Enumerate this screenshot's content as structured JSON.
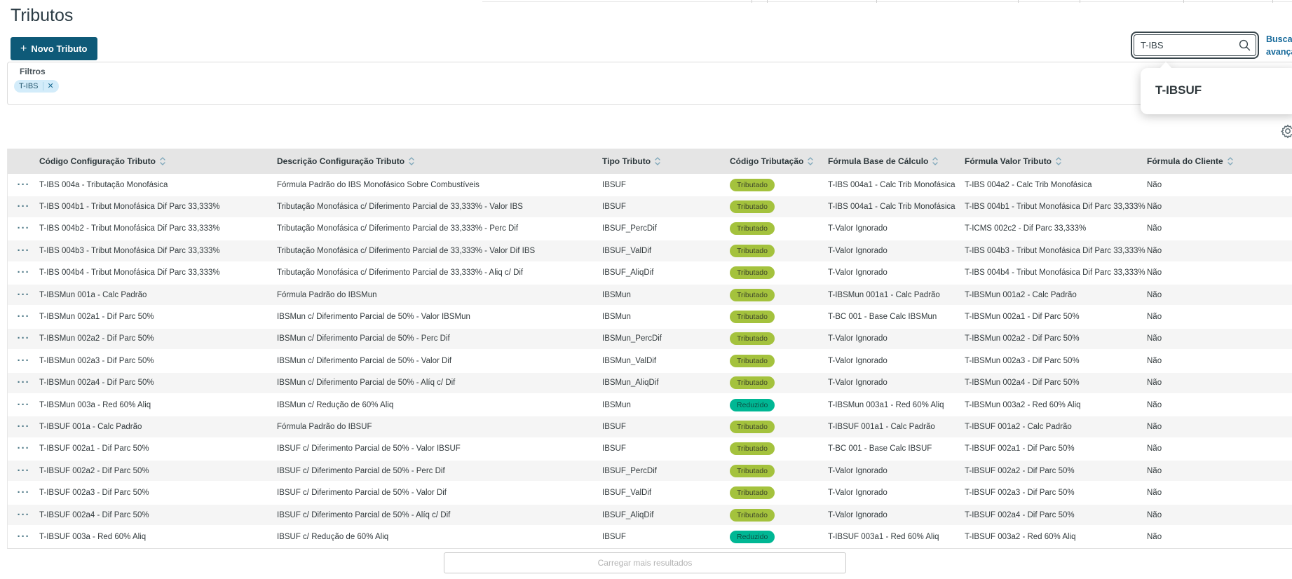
{
  "page": {
    "title": "Tributos"
  },
  "toolbar": {
    "new_button": {
      "icon": "+",
      "label": "Novo Tributo"
    },
    "search": {
      "value": "T-IBS",
      "placeholder": ""
    },
    "advanced_search_link": "Busca avançada"
  },
  "suggestion": {
    "label": "T-IBSUF"
  },
  "filters": {
    "title": "Filtros",
    "chips": [
      {
        "label": "T-IBS"
      }
    ]
  },
  "table": {
    "columns": [
      {
        "label": "",
        "sortable": false
      },
      {
        "label": "Código Configuração Tributo",
        "sortable": true
      },
      {
        "label": "Descrição Configuração Tributo",
        "sortable": true
      },
      {
        "label": "Tipo Tributo",
        "sortable": true
      },
      {
        "label": "Código Tributação",
        "sortable": true
      },
      {
        "label": "Fórmula Base de Cálculo",
        "sortable": true
      },
      {
        "label": "Fórmula Valor Tributo",
        "sortable": true
      },
      {
        "label": "Fórmula do Cliente",
        "sortable": true
      }
    ],
    "rows": [
      {
        "codigo": "T-IBS 004a - Tributação Monofásica",
        "descricao": "Fórmula Padrão do IBS Monofásico Sobre Combustíveis",
        "tipo": "IBSUF",
        "tributacao": "Tributado",
        "tributacao_variant": "green",
        "formula_base": "T-IBS 004a1 - Calc Trib Monofásica",
        "formula_valor": "T-IBS 004a2 - Calc Trib Monofásica",
        "formula_cliente": "Não"
      },
      {
        "codigo": "T-IBS 004b1 - Tribut Monofásica Dif Parc 33,333%",
        "descricao": "Tributação Monofásica c/ Diferimento Parcial de 33,333% - Valor IBS",
        "tipo": "IBSUF",
        "tributacao": "Tributado",
        "tributacao_variant": "green",
        "formula_base": "T-IBS 004a1 - Calc Trib Monofásica",
        "formula_valor": "T-IBS 004b1 - Tribut Monofásica Dif Parc 33,333%",
        "formula_cliente": "Não"
      },
      {
        "codigo": "T-IBS 004b2 - Tribut Monofásica Dif Parc 33,333%",
        "descricao": "Tributação Monofásica c/ Diferimento Parcial de 33,333% - Perc Dif",
        "tipo": "IBSUF_PercDif",
        "tributacao": "Tributado",
        "tributacao_variant": "green",
        "formula_base": "T-Valor Ignorado",
        "formula_valor": "T-ICMS 002c2 - Dif Parc 33,333%",
        "formula_cliente": "Não"
      },
      {
        "codigo": "T-IBS 004b3 - Tribut Monofásica Dif Parc 33,333%",
        "descricao": "Tributação Monofásica c/ Diferimento Parcial de 33,333% - Valor Dif IBS",
        "tipo": "IBSUF_ValDif",
        "tributacao": "Tributado",
        "tributacao_variant": "green",
        "formula_base": "T-Valor Ignorado",
        "formula_valor": "T-IBS 004b3 - Tribut Monofásica Dif Parc 33,333%",
        "formula_cliente": "Não"
      },
      {
        "codigo": "T-IBS 004b4 - Tribut Monofásica Dif Parc 33,333%",
        "descricao": "Tributação Monofásica c/ Diferimento Parcial de 33,333% - Aliq c/ Dif",
        "tipo": "IBSUF_AliqDif",
        "tributacao": "Tributado",
        "tributacao_variant": "green",
        "formula_base": "T-Valor Ignorado",
        "formula_valor": "T-IBS 004b4 - Tribut Monofásica Dif Parc 33,333%",
        "formula_cliente": "Não"
      },
      {
        "codigo": "T-IBSMun 001a - Calc Padrão",
        "descricao": "Fórmula Padrão do IBSMun",
        "tipo": "IBSMun",
        "tributacao": "Tributado",
        "tributacao_variant": "green",
        "formula_base": "T-IBSMun 001a1 - Calc Padrão",
        "formula_valor": "T-IBSMun 001a2 - Calc Padrão",
        "formula_cliente": "Não"
      },
      {
        "codigo": "T-IBSMun 002a1 - Dif Parc 50%",
        "descricao": "IBSMun c/ Diferimento Parcial de 50% - Valor IBSMun",
        "tipo": "IBSMun",
        "tributacao": "Tributado",
        "tributacao_variant": "green",
        "formula_base": "T-BC 001 - Base Calc IBSMun",
        "formula_valor": "T-IBSMun 002a1 - Dif Parc 50%",
        "formula_cliente": "Não"
      },
      {
        "codigo": "T-IBSMun 002a2 - Dif Parc 50%",
        "descricao": "IBSMun c/ Diferimento Parcial de 50% - Perc Dif",
        "tipo": "IBSMun_PercDif",
        "tributacao": "Tributado",
        "tributacao_variant": "green",
        "formula_base": "T-Valor Ignorado",
        "formula_valor": "T-IBSMun 002a2 - Dif Parc 50%",
        "formula_cliente": "Não"
      },
      {
        "codigo": "T-IBSMun 002a3 - Dif Parc 50%",
        "descricao": "IBSMun c/ Diferimento Parcial de 50% - Valor Dif",
        "tipo": "IBSMun_ValDif",
        "tributacao": "Tributado",
        "tributacao_variant": "green",
        "formula_base": "T-Valor Ignorado",
        "formula_valor": "T-IBSMun 002a3 - Dif Parc 50%",
        "formula_cliente": "Não"
      },
      {
        "codigo": "T-IBSMun 002a4 - Dif Parc 50%",
        "descricao": "IBSMun c/ Diferimento Parcial de 50% - Alíq c/ Dif",
        "tipo": "IBSMun_AliqDif",
        "tributacao": "Tributado",
        "tributacao_variant": "green",
        "formula_base": "T-Valor Ignorado",
        "formula_valor": "T-IBSMun 002a4 - Dif Parc 50%",
        "formula_cliente": "Não"
      },
      {
        "codigo": "T-IBSMun 003a - Red 60% Aliq",
        "descricao": "IBSMun c/ Redução de 60% Aliq",
        "tipo": "IBSMun",
        "tributacao": "Reduzido",
        "tributacao_variant": "teal",
        "formula_base": "T-IBSMun 003a1 - Red 60% Aliq",
        "formula_valor": "T-IBSMun 003a2 - Red 60% Aliq",
        "formula_cliente": "Não"
      },
      {
        "codigo": "T-IBSUF 001a - Calc Padrão",
        "descricao": "Fórmula Padrão do IBSUF",
        "tipo": "IBSUF",
        "tributacao": "Tributado",
        "tributacao_variant": "green",
        "formula_base": "T-IBSUF 001a1 - Calc Padrão",
        "formula_valor": "T-IBSUF 001a2 - Calc Padrão",
        "formula_cliente": "Não"
      },
      {
        "codigo": "T-IBSUF 002a1 - Dif Parc 50%",
        "descricao": "IBSUF c/ Diferimento Parcial de 50% - Valor IBSUF",
        "tipo": "IBSUF",
        "tributacao": "Tributado",
        "tributacao_variant": "green",
        "formula_base": "T-BC 001 - Base Calc IBSUF",
        "formula_valor": "T-IBSUF 002a1 - Dif Parc 50%",
        "formula_cliente": "Não"
      },
      {
        "codigo": "T-IBSUF 002a2 - Dif Parc 50%",
        "descricao": "IBSUF c/ Diferimento Parcial de 50% - Perc Dif",
        "tipo": "IBSUF_PercDif",
        "tributacao": "Tributado",
        "tributacao_variant": "green",
        "formula_base": "T-Valor Ignorado",
        "formula_valor": "T-IBSUF 002a2 - Dif Parc 50%",
        "formula_cliente": "Não"
      },
      {
        "codigo": "T-IBSUF 002a3 - Dif Parc 50%",
        "descricao": "IBSUF c/ Diferimento Parcial de 50% - Valor Dif",
        "tipo": "IBSUF_ValDif",
        "tributacao": "Tributado",
        "tributacao_variant": "green",
        "formula_base": "T-Valor Ignorado",
        "formula_valor": "T-IBSUF 002a3 - Dif Parc 50%",
        "formula_cliente": "Não"
      },
      {
        "codigo": "T-IBSUF 002a4 - Dif Parc 50%",
        "descricao": "IBSUF c/ Diferimento Parcial de 50% - Alíq c/ Dif",
        "tipo": "IBSUF_AliqDif",
        "tributacao": "Tributado",
        "tributacao_variant": "green",
        "formula_base": "T-Valor Ignorado",
        "formula_valor": "T-IBSUF 002a4 - Dif Parc 50%",
        "formula_cliente": "Não"
      },
      {
        "codigo": "T-IBSUF 003a - Red 60% Aliq",
        "descricao": "IBSUF c/ Redução de 60% Aliq",
        "tipo": "IBSUF",
        "tributacao": "Reduzido",
        "tributacao_variant": "teal",
        "formula_base": "T-IBSUF 003a1 - Red 60% Aliq",
        "formula_valor": "T-IBSUF 003a2 - Red 60% Aliq",
        "formula_cliente": "Não"
      }
    ],
    "load_more_label": "Carregar mais resultados"
  },
  "colors": {
    "primary_button": "#0e5a78",
    "link_blue": "#15699a",
    "tag_green": "#a4c23d",
    "tag_teal": "#00b794",
    "chip_bg": "#d3ecfa",
    "header_bg": "#e5e5e5",
    "row_alt_bg": "#f5f5f5"
  }
}
